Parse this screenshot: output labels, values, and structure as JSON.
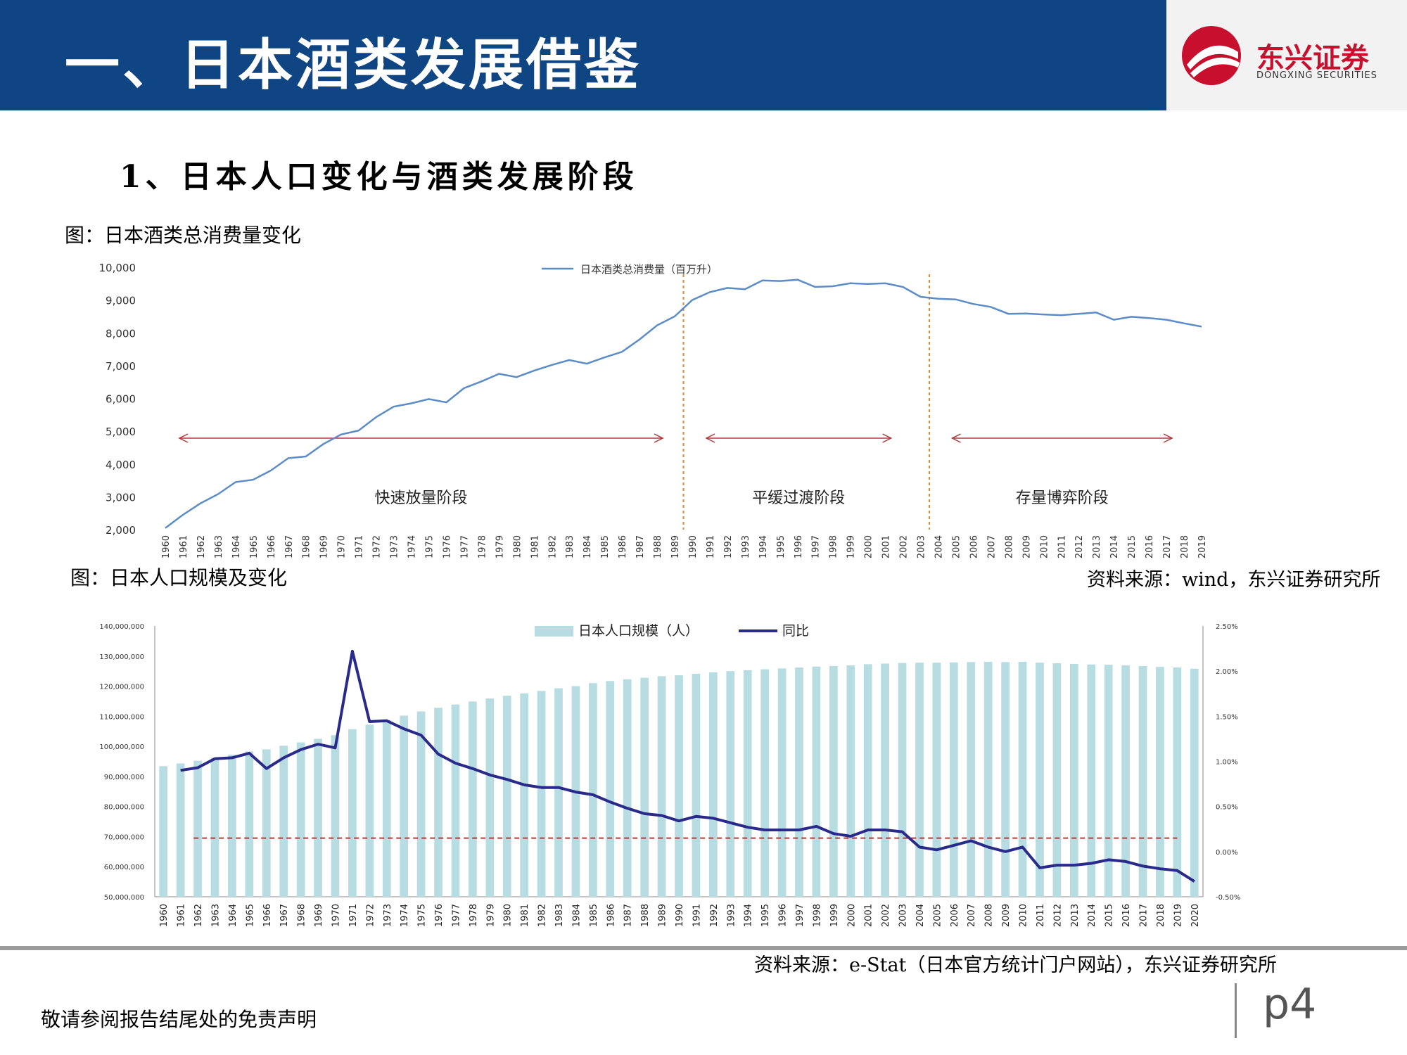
{
  "header": {
    "title": "一、日本酒类发展借鉴"
  },
  "logo": {
    "name": "东兴证券",
    "name_en": "DONGXING SECURITIES"
  },
  "subtitle": "1、日本人口变化与酒类发展阶段",
  "chart1_caption": "图：日本酒类总消费量变化",
  "chart1_source": "资料来源：wind，东兴证券研究所",
  "chart2_caption": "图：日本人口规模及变化",
  "chart2_source": "资料来源：e-Stat（日本官方统计门户网站），东兴证券研究所",
  "disclaimer": "敬请参阅报告结尾处的免责声明",
  "page": "p4",
  "colors": {
    "header": "#0f4582",
    "line1": "#5b8cc6",
    "bars": "#b7dde3",
    "line2": "#2a2a8a",
    "ref": "#c0392b",
    "phase": "#e08a2e",
    "arrow": "#b03a3a"
  },
  "chart_data": [
    {
      "type": "line",
      "title": "",
      "series": [
        {
          "name": "日本酒类总消费量（百万升）",
          "values": [
            2050,
            2450,
            2800,
            3080,
            3450,
            3520,
            3800,
            4180,
            4230,
            4610,
            4900,
            5020,
            5430,
            5750,
            5850,
            5980,
            5880,
            6310,
            6520,
            6750,
            6650,
            6850,
            7020,
            7170,
            7060,
            7250,
            7420,
            7800,
            8230,
            8500,
            9000,
            9240,
            9370,
            9330,
            9600,
            9580,
            9620,
            9400,
            9420,
            9510,
            9490,
            9510,
            9400,
            9100,
            9040,
            9020,
            8880,
            8790,
            8580,
            8590,
            8560,
            8540,
            8580,
            8620,
            8400,
            8490,
            8450,
            8400,
            8290,
            8190
          ]
        }
      ],
      "x": [
        "1960",
        "1961",
        "1962",
        "1963",
        "1964",
        "1965",
        "1966",
        "1967",
        "1968",
        "1969",
        "1970",
        "1971",
        "1972",
        "1973",
        "1974",
        "1975",
        "1976",
        "1977",
        "1978",
        "1979",
        "1980",
        "1981",
        "1982",
        "1983",
        "1984",
        "1985",
        "1986",
        "1987",
        "1988",
        "1989",
        "1990",
        "1991",
        "1992",
        "1993",
        "1994",
        "1995",
        "1996",
        "1997",
        "1998",
        "1999",
        "2000",
        "2001",
        "2002",
        "2003",
        "2004",
        "2005",
        "2006",
        "2007",
        "2008",
        "2009",
        "2010",
        "2011",
        "2012",
        "2013",
        "2014",
        "2015",
        "2016",
        "2017",
        "2018",
        "2019"
      ],
      "ylim": [
        2000,
        10000
      ],
      "yticks": [
        "2,000",
        "3,000",
        "4,000",
        "5,000",
        "6,000",
        "7,000",
        "8,000",
        "9,000",
        "10,000"
      ],
      "phases": [
        {
          "label": "快速放量阶段",
          "from": "1960",
          "to": "1988"
        },
        {
          "label": "平缓过渡阶段",
          "from": "1990",
          "to": "2001"
        },
        {
          "label": "存量博弈阶段",
          "from": "2004",
          "to": "2017"
        }
      ],
      "phase_dividers": [
        "1989",
        "2003"
      ],
      "legend": "top"
    },
    {
      "type": "bar",
      "title": "",
      "categories": [
        "1960",
        "1961",
        "1962",
        "1963",
        "1964",
        "1965",
        "1966",
        "1967",
        "1968",
        "1969",
        "1970",
        "1971",
        "1972",
        "1973",
        "1974",
        "1975",
        "1976",
        "1977",
        "1978",
        "1979",
        "1980",
        "1981",
        "1982",
        "1983",
        "1984",
        "1985",
        "1986",
        "1987",
        "1988",
        "1989",
        "1990",
        "1991",
        "1992",
        "1993",
        "1994",
        "1995",
        "1996",
        "1997",
        "1998",
        "1999",
        "2000",
        "2001",
        "2002",
        "2003",
        "2004",
        "2005",
        "2006",
        "2007",
        "2008",
        "2009",
        "2010",
        "2011",
        "2012",
        "2013",
        "2014",
        "2015",
        "2016",
        "2017",
        "2018",
        "2019",
        "2020"
      ],
      "series": [
        {
          "name": "日本人口规模（人）",
          "type": "bar",
          "axis": "left",
          "values": [
            93400000,
            94300000,
            95200000,
            96200000,
            97200000,
            98300000,
            99000000,
            100200000,
            101300000,
            102500000,
            103700000,
            105700000,
            107200000,
            108700000,
            110200000,
            111600000,
            112800000,
            113900000,
            114900000,
            115900000,
            116800000,
            117600000,
            118400000,
            119300000,
            120000000,
            121000000,
            121700000,
            122300000,
            122800000,
            123300000,
            123600000,
            124100000,
            124600000,
            125000000,
            125300000,
            125600000,
            125900000,
            126200000,
            126500000,
            126700000,
            126900000,
            127300000,
            127500000,
            127700000,
            127800000,
            127800000,
            127900000,
            128000000,
            128100000,
            128000000,
            128100000,
            127800000,
            127600000,
            127400000,
            127200000,
            127100000,
            126900000,
            126700000,
            126400000,
            126200000,
            125800000
          ]
        },
        {
          "name": "同比",
          "type": "line",
          "axis": "right",
          "values": [
            null,
            0.009,
            0.0093,
            0.0103,
            0.0104,
            0.0109,
            0.0092,
            0.0104,
            0.0113,
            0.0119,
            0.0115,
            0.0222,
            0.0144,
            0.0145,
            0.0136,
            0.0129,
            0.0108,
            0.0098,
            0.0092,
            0.0085,
            0.008,
            0.0074,
            0.0071,
            0.0071,
            0.0066,
            0.0063,
            0.0055,
            0.0048,
            0.0042,
            0.004,
            0.0034,
            0.0039,
            0.0037,
            0.0032,
            0.0027,
            0.0024,
            0.0024,
            0.0024,
            0.0028,
            0.002,
            0.0017,
            0.0024,
            0.0024,
            0.0022,
            0.0005,
            0.0002,
            0.0007,
            0.0012,
            0.0005,
            0.0,
            0.0005,
            -0.0018,
            -0.0015,
            -0.0015,
            -0.0013,
            -0.0009,
            -0.0011,
            -0.0016,
            -0.0019,
            -0.0021,
            -0.0033
          ]
        }
      ],
      "ylim_left": [
        50000000,
        140000000
      ],
      "yticks_left": [
        "50,000,000",
        "60,000,000",
        "70,000,000",
        "80,000,000",
        "90,000,000",
        "100,000,000",
        "110,000,000",
        "120,000,000",
        "130,000,000",
        "140,000,000"
      ],
      "ylim_right": [
        -0.005,
        0.025
      ],
      "yticks_right": [
        "-0.50%",
        "0.00%",
        "0.50%",
        "1.00%",
        "1.50%",
        "2.00%",
        "2.50%"
      ],
      "reference_line": 0.0015,
      "legend": "top"
    }
  ]
}
